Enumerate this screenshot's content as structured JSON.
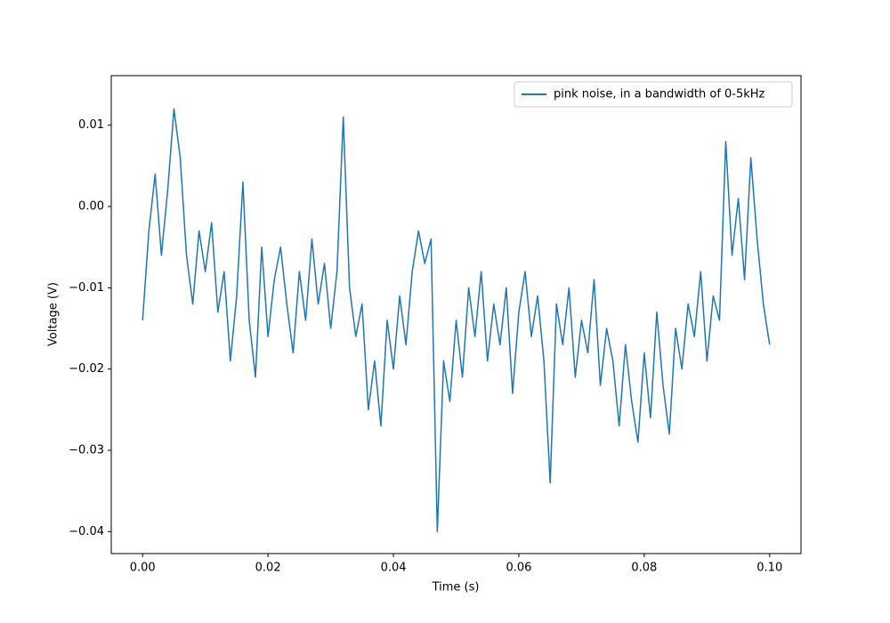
{
  "chart_data": {
    "type": "line",
    "xlabel": "Time (s)",
    "ylabel": "Voltage (V)",
    "x": [
      0.0,
      0.001,
      0.002,
      0.003,
      0.004,
      0.005,
      0.006,
      0.007,
      0.008,
      0.009,
      0.01,
      0.011,
      0.012,
      0.013,
      0.014,
      0.015,
      0.016,
      0.017,
      0.018,
      0.019,
      0.02,
      0.021,
      0.022,
      0.023,
      0.024,
      0.025,
      0.026,
      0.027,
      0.028,
      0.029,
      0.03,
      0.031,
      0.032,
      0.033,
      0.034,
      0.035,
      0.036,
      0.037,
      0.038,
      0.039,
      0.04,
      0.041,
      0.042,
      0.043,
      0.044,
      0.045,
      0.046,
      0.047,
      0.048,
      0.049,
      0.05,
      0.051,
      0.052,
      0.053,
      0.054,
      0.055,
      0.056,
      0.057,
      0.058,
      0.059,
      0.06,
      0.061,
      0.062,
      0.063,
      0.064,
      0.065,
      0.066,
      0.067,
      0.068,
      0.069,
      0.07,
      0.071,
      0.072,
      0.073,
      0.074,
      0.075,
      0.076,
      0.077,
      0.078,
      0.079,
      0.08,
      0.081,
      0.082,
      0.083,
      0.084,
      0.085,
      0.086,
      0.087,
      0.088,
      0.089,
      0.09,
      0.091,
      0.092,
      0.093,
      0.094,
      0.095,
      0.096,
      0.097,
      0.098,
      0.099,
      0.1
    ],
    "series": [
      {
        "name": "pink noise, in a bandwidth of 0-5kHz",
        "color": "#1f77b4",
        "values": [
          -0.014,
          -0.003,
          0.004,
          -0.006,
          0.002,
          0.012,
          0.006,
          -0.006,
          -0.012,
          -0.003,
          -0.008,
          -0.002,
          -0.013,
          -0.008,
          -0.019,
          -0.011,
          0.003,
          -0.014,
          -0.021,
          -0.005,
          -0.016,
          -0.009,
          -0.005,
          -0.012,
          -0.018,
          -0.008,
          -0.014,
          -0.004,
          -0.012,
          -0.007,
          -0.015,
          -0.008,
          0.011,
          -0.01,
          -0.016,
          -0.012,
          -0.025,
          -0.019,
          -0.027,
          -0.014,
          -0.02,
          -0.011,
          -0.017,
          -0.008,
          -0.003,
          -0.007,
          -0.004,
          -0.04,
          -0.019,
          -0.024,
          -0.014,
          -0.021,
          -0.01,
          -0.016,
          -0.008,
          -0.019,
          -0.012,
          -0.017,
          -0.01,
          -0.023,
          -0.013,
          -0.008,
          -0.016,
          -0.011,
          -0.019,
          -0.034,
          -0.012,
          -0.017,
          -0.01,
          -0.021,
          -0.014,
          -0.018,
          -0.009,
          -0.022,
          -0.015,
          -0.019,
          -0.027,
          -0.017,
          -0.024,
          -0.029,
          -0.018,
          -0.026,
          -0.013,
          -0.022,
          -0.028,
          -0.015,
          -0.02,
          -0.012,
          -0.016,
          -0.008,
          -0.019,
          -0.011,
          -0.014,
          0.008,
          -0.006,
          0.001,
          -0.009,
          0.006,
          -0.004,
          -0.012,
          -0.017
        ]
      }
    ],
    "xlim": [
      -0.005,
      0.105
    ],
    "xticks": [
      {
        "value": 0,
        "label": "0.00"
      },
      0.02,
      0.04,
      0.06,
      0.08,
      {
        "value": 0.1,
        "label": "0.10"
      }
    ],
    "ylim": [
      -0.0427,
      0.0161
    ],
    "yticks": [
      {
        "value": -0.04,
        "label": "−0.04"
      },
      {
        "value": -0.03,
        "label": "−0.03"
      },
      {
        "value": -0.02,
        "label": "−0.02"
      },
      {
        "value": -0.01,
        "label": "−0.01"
      },
      {
        "value": 0,
        "label": "0.00"
      },
      0.01
    ],
    "grid": false,
    "legend": "upper right"
  }
}
